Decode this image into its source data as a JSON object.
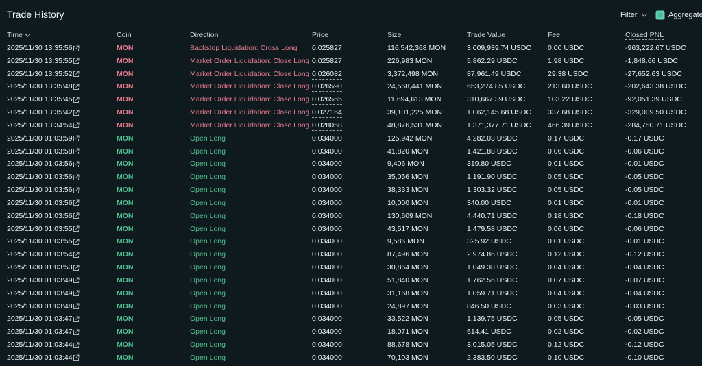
{
  "header": {
    "title": "Trade History",
    "filter": "Filter",
    "aggregate": "Aggregate"
  },
  "table": {
    "columns": [
      "Time",
      "Coin",
      "Direction",
      "Price",
      "Size",
      "Trade Value",
      "Fee",
      "Closed PNL"
    ],
    "rows": [
      {
        "color": "#e57a8c",
        "price_underlined": true,
        "cells": [
          "2025/11/30 13:35:56",
          "MON",
          "Backstop Liquidation: Cross Long",
          "0.025827",
          "116,542,368 MON",
          "3,009,939.74 USDC",
          "0.00 USDC",
          "-963,222.67 USDC"
        ]
      },
      {
        "color": "#e57a8c",
        "price_underlined": true,
        "cells": [
          "2025/11/30 13:35:55",
          "MON",
          "Market Order Liquidation: Close Long",
          "0.025827",
          "226,983 MON",
          "5,862.29 USDC",
          "1.98 USDC",
          "-1,848.66 USDC"
        ]
      },
      {
        "color": "#e57a8c",
        "price_underlined": true,
        "cells": [
          "2025/11/30 13:35:52",
          "MON",
          "Market Order Liquidation: Close Long",
          "0.026082",
          "3,372,498 MON",
          "87,961.49 USDC",
          "29.38 USDC",
          "-27,652.63 USDC"
        ]
      },
      {
        "color": "#e57a8c",
        "price_underlined": true,
        "cells": [
          "2025/11/30 13:35:48",
          "MON",
          "Market Order Liquidation: Close Long",
          "0.026590",
          "24,568,441 MON",
          "653,274.85 USDC",
          "213.60 USDC",
          "-202,643.38 USDC"
        ]
      },
      {
        "color": "#e57a8c",
        "price_underlined": true,
        "cells": [
          "2025/11/30 13:35:45",
          "MON",
          "Market Order Liquidation: Close Long",
          "0.026565",
          "11,694,613 MON",
          "310,667.39 USDC",
          "103.22 USDC",
          "-92,051.39 USDC"
        ]
      },
      {
        "color": "#e57a8c",
        "price_underlined": true,
        "cells": [
          "2025/11/30 13:35:42",
          "MON",
          "Market Order Liquidation: Close Long",
          "0.027164",
          "39,101,225 MON",
          "1,062,145.68 USDC",
          "337.68 USDC",
          "-329,009.50 USDC"
        ]
      },
      {
        "color": "#e57a8c",
        "price_underlined": true,
        "cells": [
          "2025/11/30 13:34:54",
          "MON",
          "Market Order Liquidation: Close Long",
          "0.028058",
          "48,876,531 MON",
          "1,371,377.71 USDC",
          "466.39 USDC",
          "-284,750.71 USDC"
        ]
      },
      {
        "color": "#4fbf8f",
        "price_underlined": false,
        "cells": [
          "2025/11/30 01:03:59",
          "MON",
          "Open Long",
          "0.034000",
          "125,942 MON",
          "4,282.03 USDC",
          "0.17 USDC",
          "-0.17 USDC"
        ]
      },
      {
        "color": "#4fbf8f",
        "price_underlined": false,
        "cells": [
          "2025/11/30 01:03:58",
          "MON",
          "Open Long",
          "0.034000",
          "41,820 MON",
          "1,421.88 USDC",
          "0.06 USDC",
          "-0.06 USDC"
        ]
      },
      {
        "color": "#4fbf8f",
        "price_underlined": false,
        "cells": [
          "2025/11/30 01:03:56",
          "MON",
          "Open Long",
          "0.034000",
          "9,406 MON",
          "319.80 USDC",
          "0.01 USDC",
          "-0.01 USDC"
        ]
      },
      {
        "color": "#4fbf8f",
        "price_underlined": false,
        "cells": [
          "2025/11/30 01:03:56",
          "MON",
          "Open Long",
          "0.034000",
          "35,056 MON",
          "1,191.90 USDC",
          "0.05 USDC",
          "-0.05 USDC"
        ]
      },
      {
        "color": "#4fbf8f",
        "price_underlined": false,
        "cells": [
          "2025/11/30 01:03:56",
          "MON",
          "Open Long",
          "0.034000",
          "38,333 MON",
          "1,303.32 USDC",
          "0.05 USDC",
          "-0.05 USDC"
        ]
      },
      {
        "color": "#4fbf8f",
        "price_underlined": false,
        "cells": [
          "2025/11/30 01:03:56",
          "MON",
          "Open Long",
          "0.034000",
          "10,000 MON",
          "340.00 USDC",
          "0.01 USDC",
          "-0.01 USDC"
        ]
      },
      {
        "color": "#4fbf8f",
        "price_underlined": false,
        "cells": [
          "2025/11/30 01:03:56",
          "MON",
          "Open Long",
          "0.034000",
          "130,609 MON",
          "4,440.71 USDC",
          "0.18 USDC",
          "-0.18 USDC"
        ]
      },
      {
        "color": "#4fbf8f",
        "price_underlined": false,
        "cells": [
          "2025/11/30 01:03:55",
          "MON",
          "Open Long",
          "0.034000",
          "43,517 MON",
          "1,479.58 USDC",
          "0.06 USDC",
          "-0.06 USDC"
        ]
      },
      {
        "color": "#4fbf8f",
        "price_underlined": false,
        "cells": [
          "2025/11/30 01:03:55",
          "MON",
          "Open Long",
          "0.034000",
          "9,586 MON",
          "325.92 USDC",
          "0.01 USDC",
          "-0.01 USDC"
        ]
      },
      {
        "color": "#4fbf8f",
        "price_underlined": false,
        "cells": [
          "2025/11/30 01:03:54",
          "MON",
          "Open Long",
          "0.034000",
          "87,496 MON",
          "2,974.86 USDC",
          "0.12 USDC",
          "-0.12 USDC"
        ]
      },
      {
        "color": "#4fbf8f",
        "price_underlined": false,
        "cells": [
          "2025/11/30 01:03:53",
          "MON",
          "Open Long",
          "0.034000",
          "30,864 MON",
          "1,049.38 USDC",
          "0.04 USDC",
          "-0.04 USDC"
        ]
      },
      {
        "color": "#4fbf8f",
        "price_underlined": false,
        "cells": [
          "2025/11/30 01:03:49",
          "MON",
          "Open Long",
          "0.034000",
          "51,840 MON",
          "1,762.56 USDC",
          "0.07 USDC",
          "-0.07 USDC"
        ]
      },
      {
        "color": "#4fbf8f",
        "price_underlined": false,
        "cells": [
          "2025/11/30 01:03:49",
          "MON",
          "Open Long",
          "0.034000",
          "31,168 MON",
          "1,059.71 USDC",
          "0.04 USDC",
          "-0.04 USDC"
        ]
      },
      {
        "color": "#4fbf8f",
        "price_underlined": false,
        "cells": [
          "2025/11/30 01:03:48",
          "MON",
          "Open Long",
          "0.034000",
          "24,897 MON",
          "846.50 USDC",
          "0.03 USDC",
          "-0.03 USDC"
        ]
      },
      {
        "color": "#4fbf8f",
        "price_underlined": false,
        "cells": [
          "2025/11/30 01:03:47",
          "MON",
          "Open Long",
          "0.034000",
          "33,522 MON",
          "1,139.75 USDC",
          "0.05 USDC",
          "-0.05 USDC"
        ]
      },
      {
        "color": "#4fbf8f",
        "price_underlined": false,
        "cells": [
          "2025/11/30 01:03:47",
          "MON",
          "Open Long",
          "0.034000",
          "18,071 MON",
          "614.41 USDC",
          "0.02 USDC",
          "-0.02 USDC"
        ]
      },
      {
        "color": "#4fbf8f",
        "price_underlined": false,
        "cells": [
          "2025/11/30 01:03:44",
          "MON",
          "Open Long",
          "0.034000",
          "88,678 MON",
          "3,015.05 USDC",
          "0.12 USDC",
          "-0.12 USDC"
        ]
      },
      {
        "color": "#4fbf8f",
        "price_underlined": false,
        "cells": [
          "2025/11/30 01:03:44",
          "MON",
          "Open Long",
          "0.034000",
          "70,103 MON",
          "2,383.50 USDC",
          "0.10 USDC",
          "-0.10 USDC"
        ]
      }
    ]
  }
}
